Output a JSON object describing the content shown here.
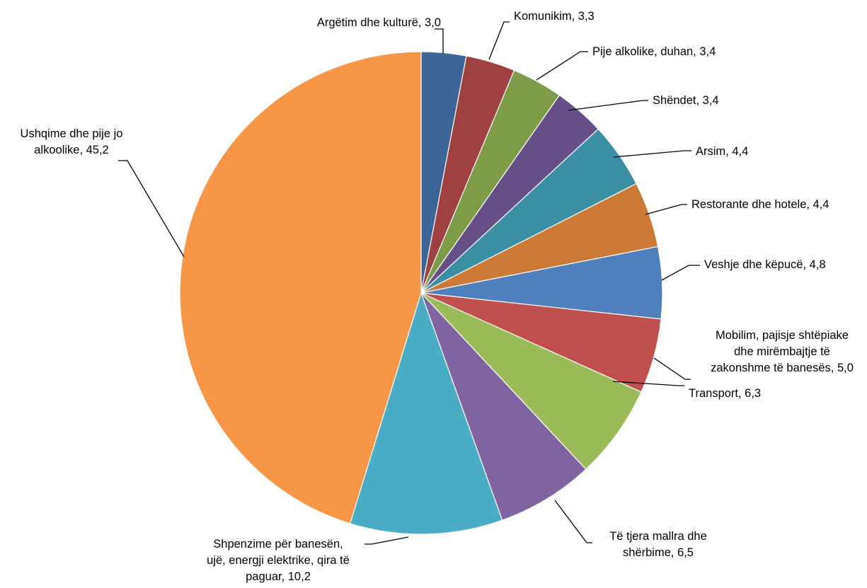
{
  "chart_data": {
    "type": "pie",
    "title": "",
    "slices": [
      {
        "label": "Argëtim dhe kulturë",
        "value": 3.0,
        "display": "3,0",
        "color": "#3E6598"
      },
      {
        "label": "Komunikim",
        "value": 3.3,
        "display": "3,3",
        "color": "#9F4041"
      },
      {
        "label": "Pije alkolike, duhan",
        "value": 3.4,
        "display": "3,4",
        "color": "#7E9B48"
      },
      {
        "label": "Shëndet",
        "value": 3.4,
        "display": "3,4",
        "color": "#664E86"
      },
      {
        "label": "Arsim",
        "value": 4.4,
        "display": "4,4",
        "color": "#3A8FA3"
      },
      {
        "label": "Restorante dhe hotele",
        "value": 4.4,
        "display": "4,4",
        "color": "#CB7935"
      },
      {
        "label": "Veshje dhe këpucë",
        "value": 4.8,
        "display": "4,8",
        "color": "#4F80BD"
      },
      {
        "label": "Mobilim, pajisje shtëpiake dhe mirëmbajtje të zakonshme të banesës",
        "value": 5.0,
        "display": "5,0",
        "color": "#C0504D"
      },
      {
        "label": "Transport",
        "value": 6.3,
        "display": "6,3",
        "color": "#9BBB59"
      },
      {
        "label": "Të tjera mallra dhe shërbime",
        "value": 6.5,
        "display": "6,5",
        "color": "#8064A2"
      },
      {
        "label": "Shpenzime për banesën, ujë, energji elektrike, qira të paguar",
        "value": 10.2,
        "display": "10,2",
        "color": "#4BACC6"
      },
      {
        "label": "Ushqime dhe pije jo alkoolike",
        "value": 45.2,
        "display": "45,2",
        "color": "#F79646"
      }
    ],
    "label_texts": [
      [
        "Argëtim dhe kulturë, 3,0"
      ],
      [
        "Komunikim, 3,3"
      ],
      [
        "Pije alkolike, duhan, 3,4"
      ],
      [
        "Shëndet, 3,4"
      ],
      [
        "Arsim, 4,4"
      ],
      [
        "Restorante dhe hotele, 4,4"
      ],
      [
        "Veshje dhe këpucë, 4,8"
      ],
      [
        "Mobilim, pajisje shtëpiake",
        "dhe mirëmbajtje të",
        "zakonshme të banesës, 5,0"
      ],
      [
        "Transport, 6,3"
      ],
      [
        "Të tjera mallra dhe",
        "shërbime, 6,5"
      ],
      [
        "Shpenzime për banesën,",
        "ujë, energji elektrike, qira të",
        "paguar, 10,2"
      ],
      [
        "Ushqime dhe pije jo",
        "alkoolike, 45,2"
      ]
    ],
    "start": "12 o'clock",
    "direction": "clockwise",
    "legend": "none",
    "data_labels": "outside with leader lines"
  }
}
